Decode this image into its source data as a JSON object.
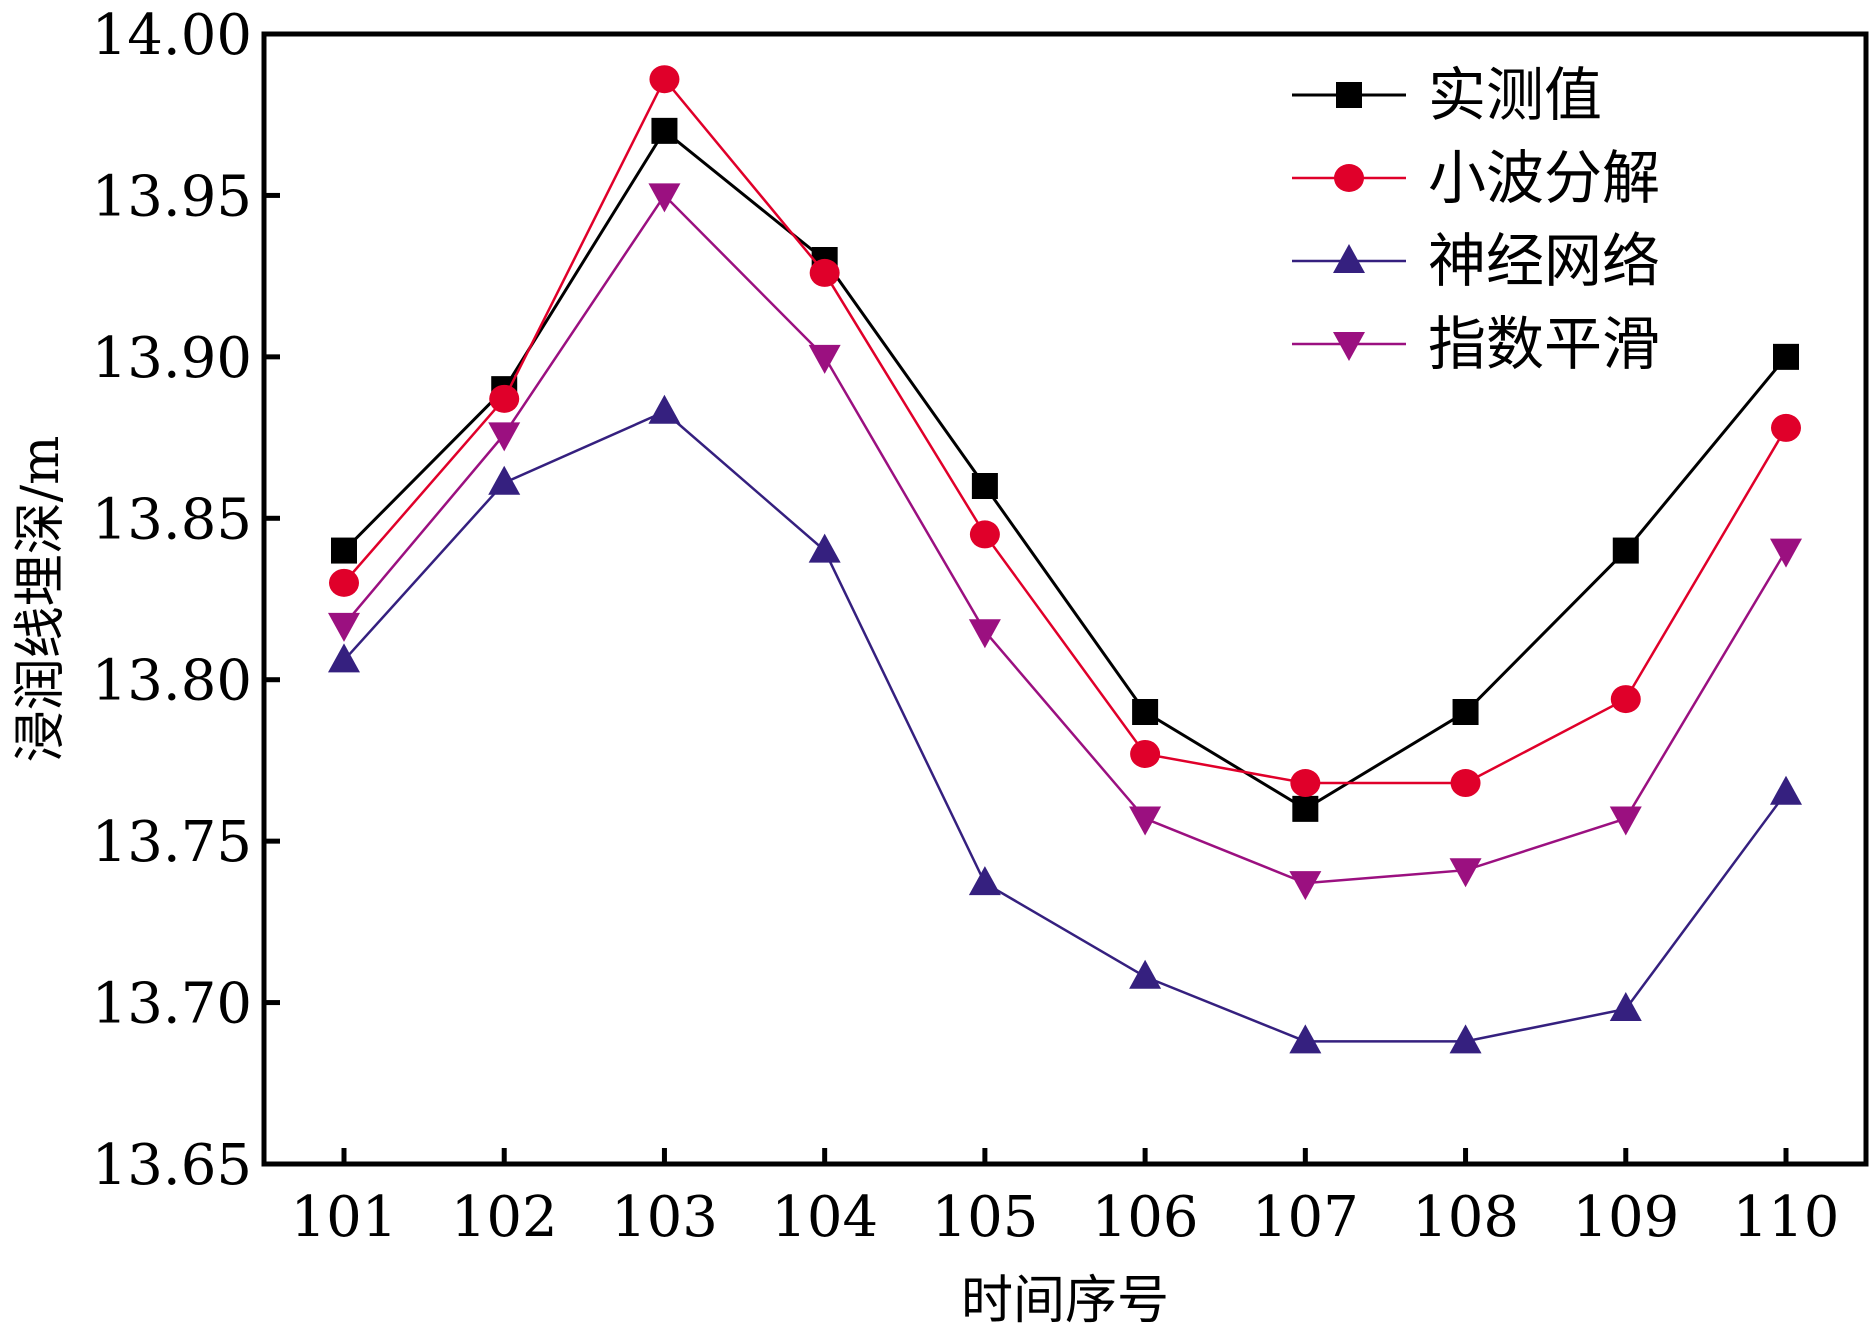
{
  "chart_data": {
    "type": "line",
    "title": "",
    "xlabel": "时间序号",
    "ylabel": "浸润线埋深/m",
    "x": [
      101,
      102,
      103,
      104,
      105,
      106,
      107,
      108,
      109,
      110
    ],
    "xticks": [
      "101",
      "102",
      "103",
      "104",
      "105",
      "106",
      "107",
      "108",
      "109",
      "110"
    ],
    "ylim": [
      13.65,
      14.0
    ],
    "yticks": [
      "13.65",
      "13.70",
      "13.75",
      "13.80",
      "13.85",
      "13.90",
      "13.95",
      "14.00"
    ],
    "grid": false,
    "legend_position": "top-right",
    "series": [
      {
        "name": "实测值",
        "color": "#000000",
        "marker": "square",
        "values": [
          13.84,
          13.89,
          13.97,
          13.93,
          13.86,
          13.79,
          13.76,
          13.79,
          13.84,
          13.9
        ]
      },
      {
        "name": "小波分解",
        "color": "#e0002a",
        "marker": "circle",
        "values": [
          13.83,
          13.887,
          13.986,
          13.926,
          13.845,
          13.777,
          13.768,
          13.768,
          13.794,
          13.878
        ]
      },
      {
        "name": "神经网络",
        "color": "#35207f",
        "marker": "triangle-up",
        "values": [
          13.806,
          13.861,
          13.883,
          13.84,
          13.737,
          13.708,
          13.688,
          13.688,
          13.698,
          13.765
        ]
      },
      {
        "name": "指数平滑",
        "color": "#9b1080",
        "marker": "triangle-down",
        "values": [
          13.817,
          13.876,
          13.95,
          13.9,
          13.815,
          13.757,
          13.737,
          13.741,
          13.757,
          13.84
        ]
      }
    ]
  }
}
